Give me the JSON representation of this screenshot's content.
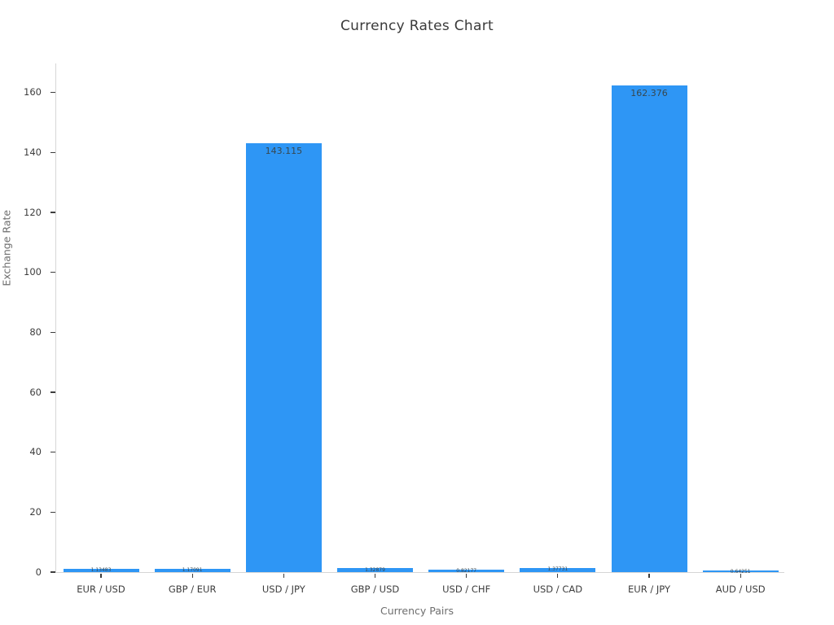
{
  "chart_data": {
    "type": "bar",
    "title": "Currency Rates Chart",
    "xlabel": "Currency Pairs",
    "ylabel": "Exchange Rate",
    "categories": [
      "EUR / USD",
      "GBP / EUR",
      "USD / JPY",
      "GBP / USD",
      "USD / CHF",
      "USD / CAD",
      "EUR / JPY",
      "AUD / USD"
    ],
    "values": [
      1.13483,
      1.17091,
      143.115,
      1.32879,
      0.82177,
      1.37731,
      162.376,
      0.64251
    ],
    "value_labels": [
      "1.13483",
      "1.17091",
      "143.115",
      "1.32879",
      "0.82177",
      "1.37731",
      "162.376",
      "0.64251"
    ],
    "yticks": [
      0,
      20,
      40,
      60,
      80,
      100,
      120,
      140,
      160
    ],
    "ylim": [
      0,
      170
    ],
    "grid": false,
    "legend": null,
    "bar_color": "#2e96f5",
    "value_label_color": "#37474f",
    "axis_text_color": "#3d3d3d",
    "axis_title_color": "#6e6e6e"
  }
}
